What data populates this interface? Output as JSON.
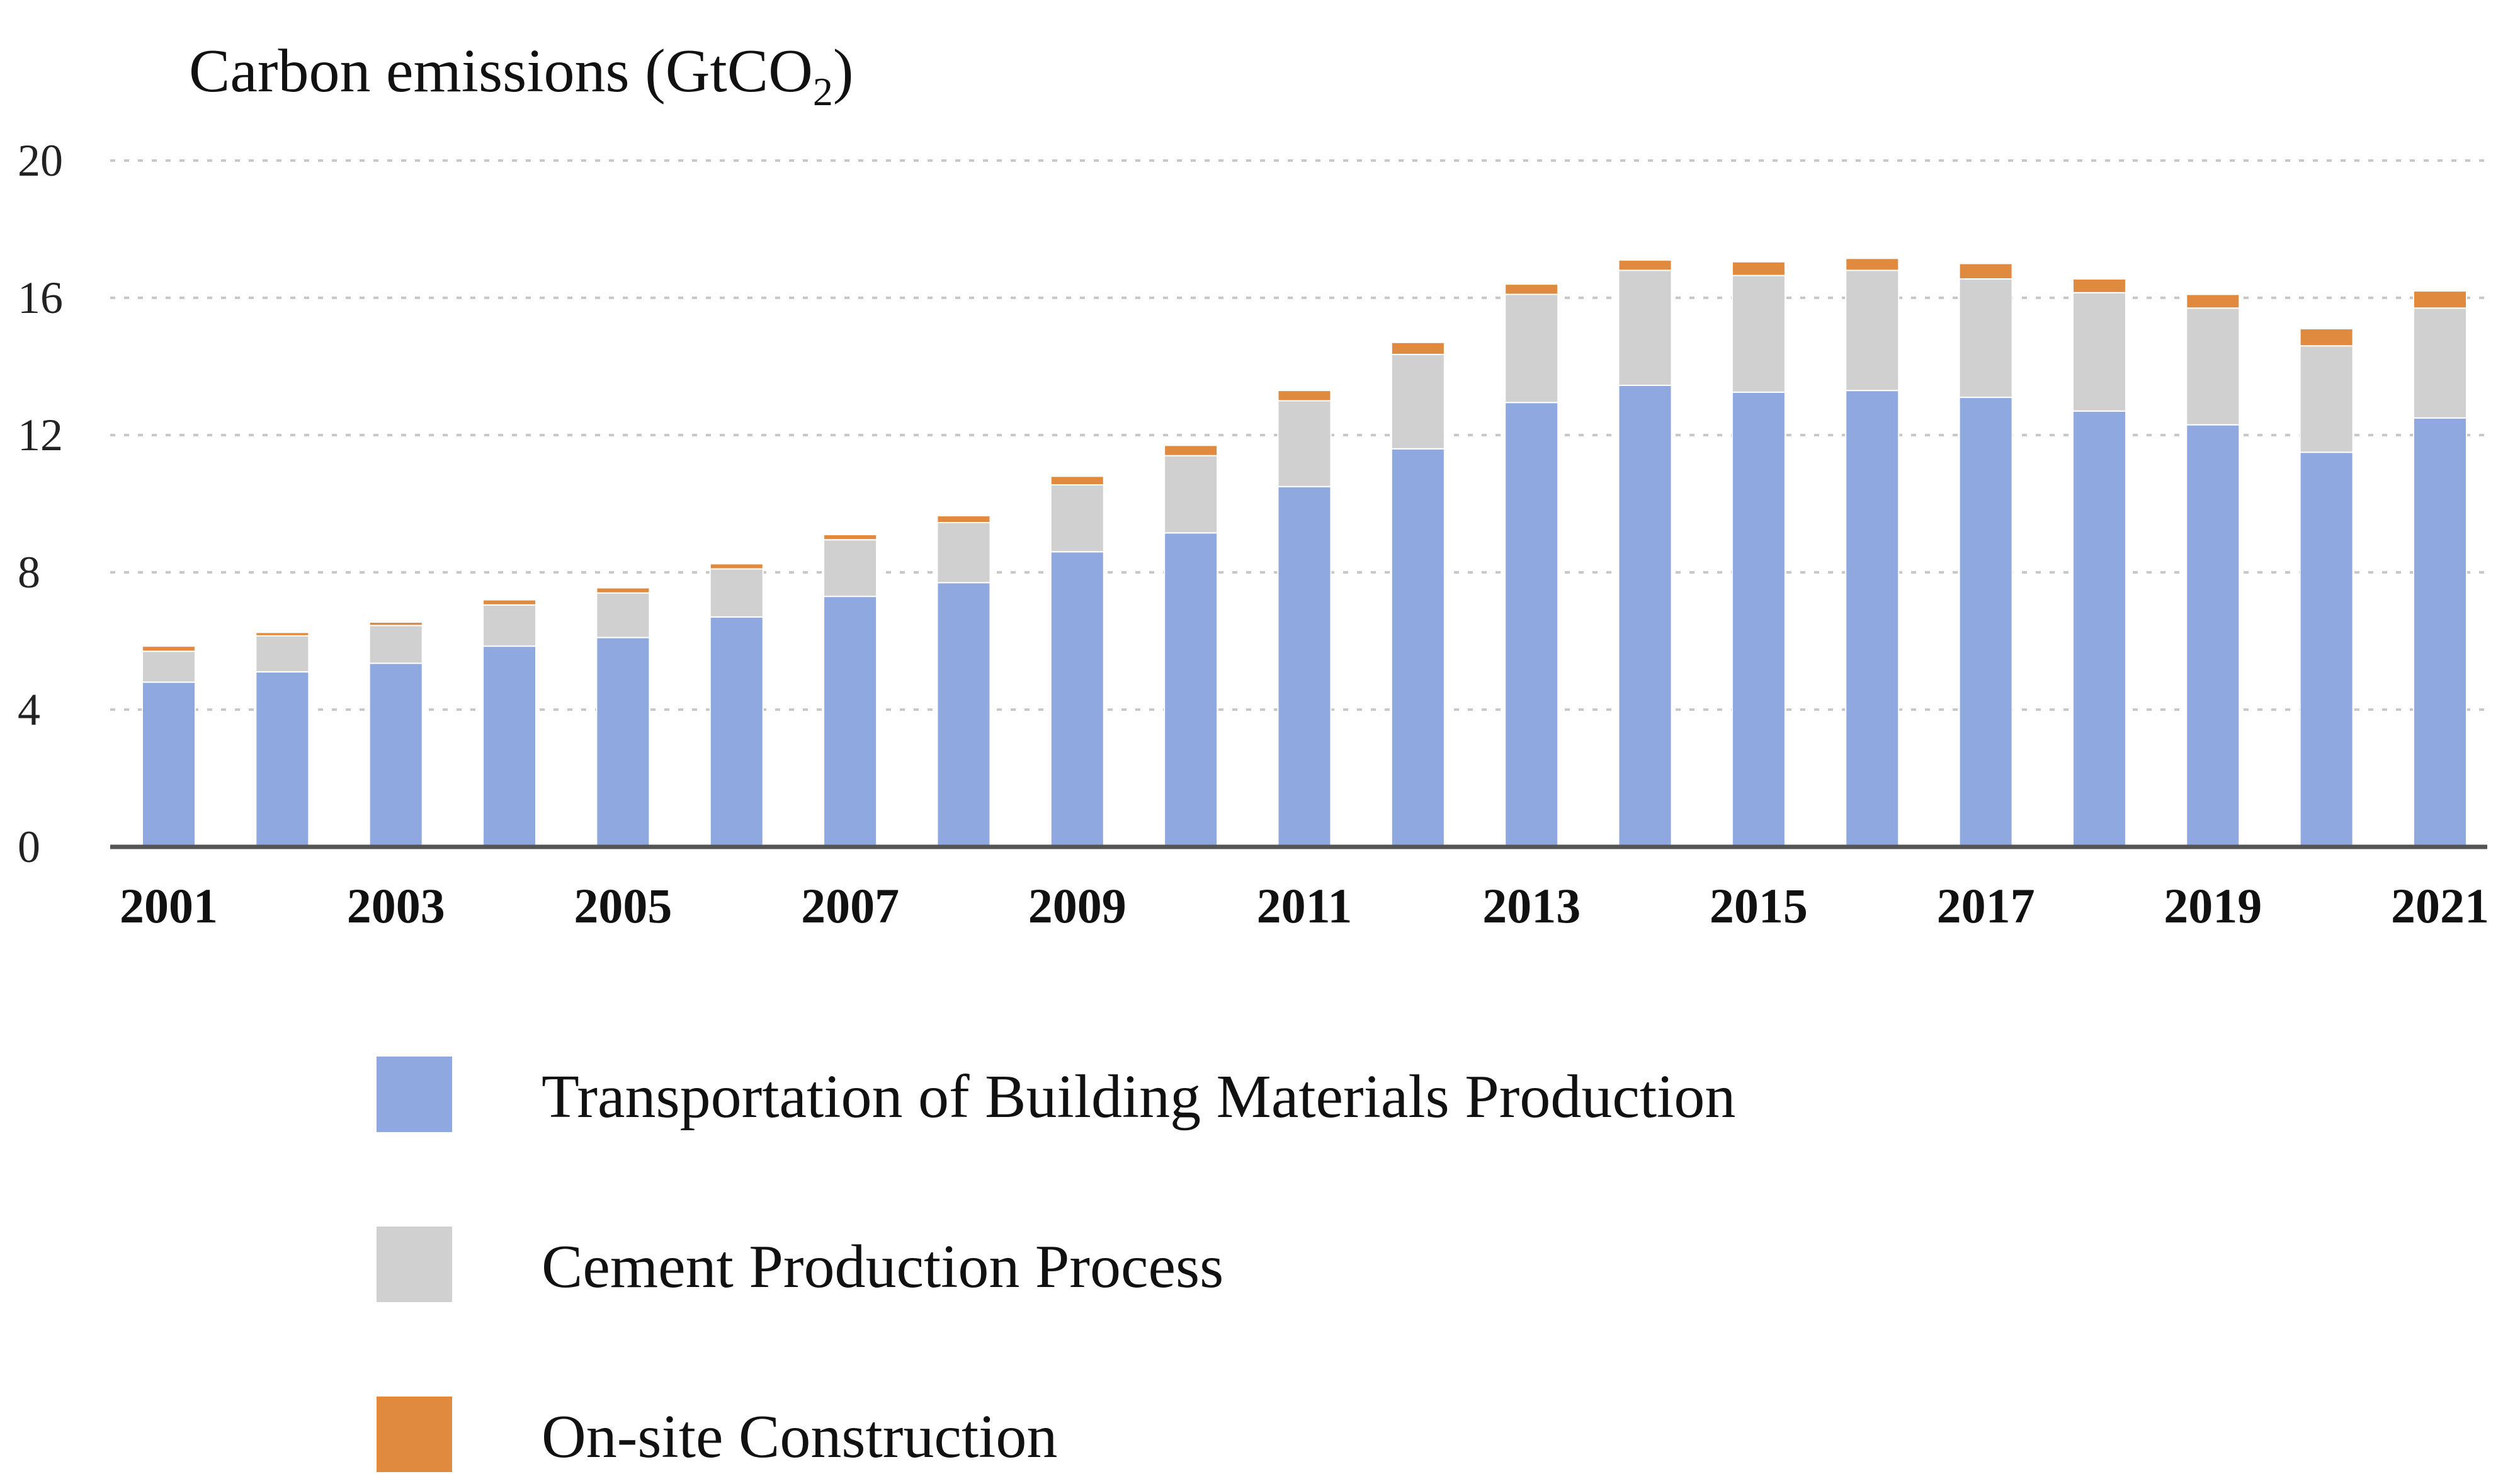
{
  "chart_data": {
    "type": "bar",
    "stacked": true,
    "title": "",
    "ylabel": "Carbon emissions (GtCO2)",
    "ylabel_main": "Carbon emissions (GtCO",
    "ylabel_subscript": "2",
    "ylabel_suffix": ")",
    "xlabel": "",
    "ylim": [
      0,
      20
    ],
    "yticks": [
      "0",
      "4",
      "8",
      "12",
      "16",
      "20"
    ],
    "grid": "horizontal dotted",
    "legend_position": "bottom",
    "categories": [
      "2001",
      "2002",
      "2003",
      "2004",
      "2005",
      "2006",
      "2007",
      "2008",
      "2009",
      "2010",
      "2011",
      "2012",
      "2013",
      "2014",
      "2015",
      "2016",
      "2017",
      "2018",
      "2019",
      "2020",
      "2021"
    ],
    "xtick_labels": [
      "2001",
      "2003",
      "2005",
      "2007",
      "2009",
      "2011",
      "2013",
      "2015",
      "2017",
      "2019",
      "2021"
    ],
    "series": [
      {
        "name": "Transportation of Building Materials Production",
        "color": "#8fa8e0",
        "values": [
          4.8,
          5.1,
          5.35,
          5.85,
          6.1,
          6.7,
          7.3,
          7.7,
          8.6,
          9.15,
          10.5,
          11.6,
          12.95,
          13.45,
          13.25,
          13.3,
          13.1,
          12.7,
          12.3,
          11.5,
          12.5
        ]
      },
      {
        "name": "Cement Production Process",
        "color": "#d0d0d0",
        "values": [
          0.9,
          1.05,
          1.1,
          1.2,
          1.3,
          1.4,
          1.65,
          1.75,
          1.95,
          2.25,
          2.5,
          2.75,
          3.15,
          3.35,
          3.4,
          3.5,
          3.45,
          3.45,
          3.4,
          3.1,
          3.2
        ]
      },
      {
        "name": "On-site Construction",
        "color": "#e08a40",
        "values": [
          0.15,
          0.1,
          0.1,
          0.15,
          0.15,
          0.15,
          0.15,
          0.2,
          0.25,
          0.3,
          0.3,
          0.35,
          0.3,
          0.3,
          0.4,
          0.35,
          0.45,
          0.4,
          0.4,
          0.5,
          0.5
        ]
      }
    ]
  },
  "colors": {
    "axis": "#555555",
    "grid": "#c8c8c8"
  }
}
